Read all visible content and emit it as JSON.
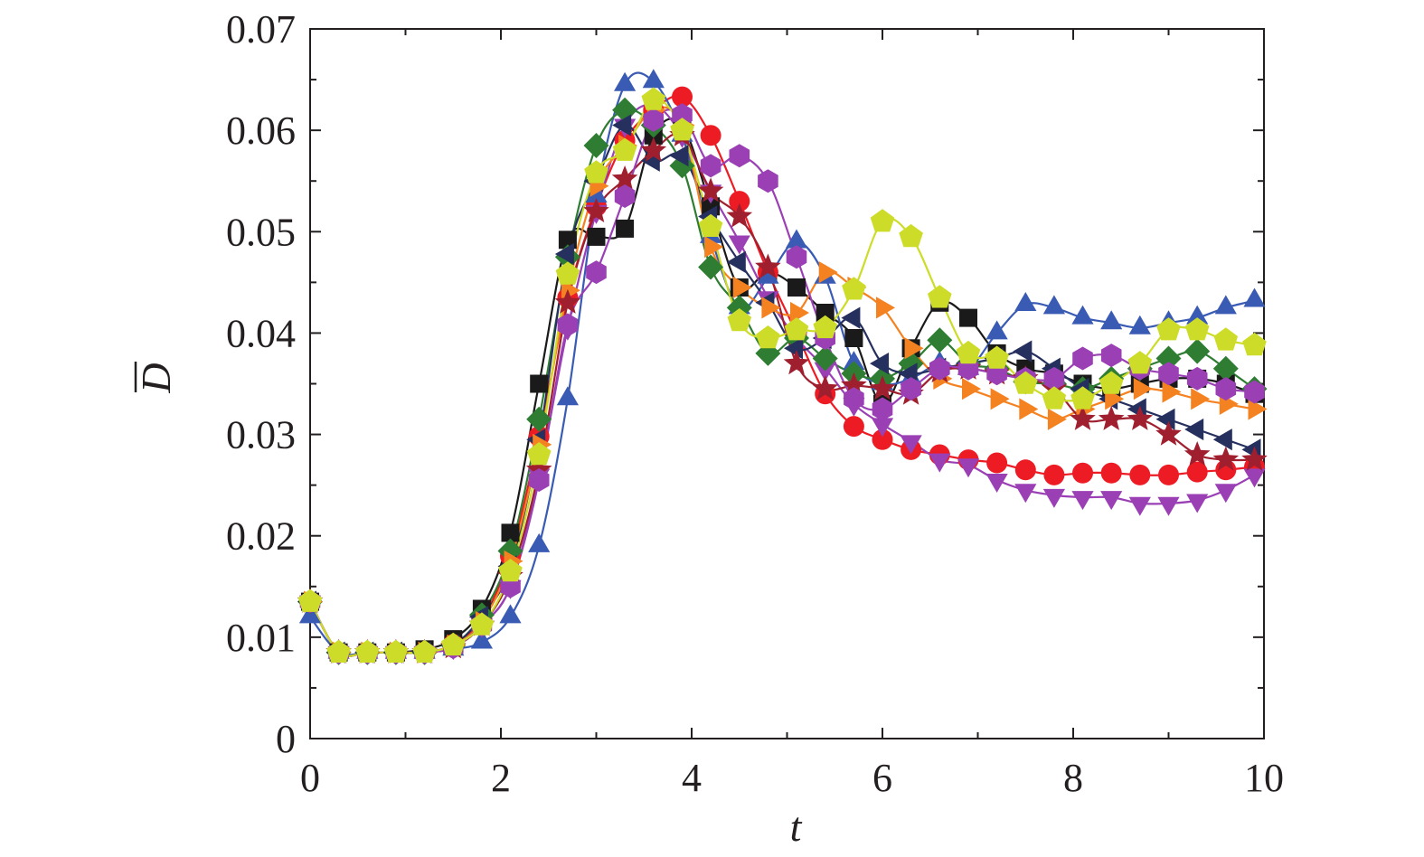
{
  "chart_data": {
    "type": "line",
    "xlabel": "t",
    "ylabel": "D",
    "ylabel_overbar": true,
    "xlim": [
      0,
      10
    ],
    "ylim": [
      0,
      0.07
    ],
    "x_ticks": [
      "0",
      "2",
      "4",
      "6",
      "8",
      "10"
    ],
    "y_ticks": [
      "0",
      "0.01",
      "0.02",
      "0.03",
      "0.04",
      "0.05",
      "0.06",
      "0.07"
    ],
    "grid": false,
    "legend": "none",
    "series": [
      {
        "marker": "square",
        "color": "#1a1a1a",
        "x": [
          0,
          0.3,
          0.6,
          0.9,
          1.2,
          1.5,
          1.8,
          2.1,
          2.4,
          2.7,
          3.0,
          3.3,
          3.6,
          3.9,
          4.2,
          4.5,
          4.8,
          5.1,
          5.4,
          5.7,
          6.0,
          6.3,
          6.6,
          6.9,
          7.2,
          7.5,
          7.8,
          8.1,
          8.4,
          8.7,
          9.0,
          9.3,
          9.6,
          9.9
        ],
        "y": [
          0.0135,
          0.0085,
          0.0085,
          0.0085,
          0.0088,
          0.0098,
          0.0128,
          0.0203,
          0.035,
          0.0492,
          0.0495,
          0.0503,
          0.0595,
          0.0605,
          0.0525,
          0.0445,
          0.046,
          0.0445,
          0.042,
          0.0395,
          0.033,
          0.0385,
          0.043,
          0.0415,
          0.038,
          0.0365,
          0.036,
          0.035,
          0.0345,
          0.035,
          0.0355,
          0.0355,
          0.035,
          0.034
        ]
      },
      {
        "marker": "circle",
        "color": "#ed1c24",
        "x": [
          0,
          0.3,
          0.6,
          0.9,
          1.2,
          1.5,
          1.8,
          2.1,
          2.4,
          2.7,
          3.0,
          3.3,
          3.6,
          3.9,
          4.2,
          4.5,
          4.8,
          5.1,
          5.4,
          5.7,
          6.0,
          6.3,
          6.6,
          6.9,
          7.2,
          7.5,
          7.8,
          8.1,
          8.4,
          8.7,
          9.0,
          9.3,
          9.6,
          9.9
        ],
        "y": [
          0.0135,
          0.0085,
          0.0085,
          0.0085,
          0.0085,
          0.0093,
          0.0118,
          0.018,
          0.0298,
          0.0435,
          0.0525,
          0.059,
          0.062,
          0.0633,
          0.0595,
          0.053,
          0.046,
          0.04,
          0.034,
          0.0308,
          0.0295,
          0.0285,
          0.028,
          0.0275,
          0.0272,
          0.0265,
          0.026,
          0.0262,
          0.0262,
          0.026,
          0.026,
          0.0263,
          0.0265,
          0.0268
        ]
      },
      {
        "marker": "triangle-up",
        "color": "#3a5bb4",
        "x": [
          0,
          0.3,
          0.6,
          0.9,
          1.2,
          1.5,
          1.8,
          2.1,
          2.4,
          2.7,
          3.0,
          3.3,
          3.6,
          3.9,
          4.2,
          4.5,
          4.8,
          5.1,
          5.4,
          5.7,
          6.0,
          6.3,
          6.6,
          6.9,
          7.2,
          7.5,
          7.8,
          8.1,
          8.4,
          8.7,
          9.0,
          9.3,
          9.6,
          9.9
        ],
        "y": [
          0.012,
          0.0085,
          0.0085,
          0.0085,
          0.0085,
          0.0088,
          0.0095,
          0.012,
          0.019,
          0.0335,
          0.0535,
          0.0645,
          0.0648,
          0.0595,
          0.0495,
          0.0425,
          0.0455,
          0.049,
          0.0455,
          0.037,
          0.035,
          0.0355,
          0.037,
          0.0365,
          0.04,
          0.0428,
          0.0425,
          0.0415,
          0.041,
          0.0405,
          0.041,
          0.0415,
          0.0425,
          0.0432
        ]
      },
      {
        "marker": "triangle-down",
        "color": "#9b3fb5",
        "x": [
          0,
          0.3,
          0.6,
          0.9,
          1.2,
          1.5,
          1.8,
          2.1,
          2.4,
          2.7,
          3.0,
          3.3,
          3.6,
          3.9,
          4.2,
          4.5,
          4.8,
          5.1,
          5.4,
          5.7,
          6.0,
          6.3,
          6.6,
          6.9,
          7.2,
          7.5,
          7.8,
          8.1,
          8.4,
          8.7,
          9.0,
          9.3,
          9.6,
          9.9
        ],
        "y": [
          0.0135,
          0.0085,
          0.0085,
          0.0085,
          0.0085,
          0.009,
          0.0112,
          0.015,
          0.026,
          0.0405,
          0.052,
          0.0605,
          0.0625,
          0.0595,
          0.054,
          0.049,
          0.0435,
          0.0395,
          0.0365,
          0.033,
          0.031,
          0.0293,
          0.0275,
          0.027,
          0.0255,
          0.0245,
          0.024,
          0.0238,
          0.0238,
          0.0232,
          0.0232,
          0.0235,
          0.0245,
          0.026
        ]
      },
      {
        "marker": "diamond",
        "color": "#2e7d32",
        "x": [
          0,
          0.3,
          0.6,
          0.9,
          1.2,
          1.5,
          1.8,
          2.1,
          2.4,
          2.7,
          3.0,
          3.3,
          3.6,
          3.9,
          4.2,
          4.5,
          4.8,
          5.1,
          5.4,
          5.7,
          6.0,
          6.3,
          6.6,
          6.9,
          7.2,
          7.5,
          7.8,
          8.1,
          8.4,
          8.7,
          9.0,
          9.3,
          9.6,
          9.9
        ],
        "y": [
          0.0135,
          0.0085,
          0.0085,
          0.0085,
          0.0085,
          0.0092,
          0.0122,
          0.0185,
          0.0315,
          0.0475,
          0.0585,
          0.062,
          0.0605,
          0.0565,
          0.0465,
          0.0425,
          0.038,
          0.0395,
          0.0375,
          0.036,
          0.0355,
          0.037,
          0.0393,
          0.037,
          0.0365,
          0.0352,
          0.035,
          0.0345,
          0.0355,
          0.0365,
          0.0375,
          0.0382,
          0.0365,
          0.0345
        ]
      },
      {
        "marker": "triangle-left",
        "color": "#26305e",
        "x": [
          0,
          0.3,
          0.6,
          0.9,
          1.2,
          1.5,
          1.8,
          2.1,
          2.4,
          2.7,
          3.0,
          3.3,
          3.6,
          3.9,
          4.2,
          4.5,
          4.8,
          5.1,
          5.4,
          5.7,
          6.0,
          6.3,
          6.6,
          6.9,
          7.2,
          7.5,
          7.8,
          8.1,
          8.4,
          8.7,
          9.0,
          9.3,
          9.6,
          9.9
        ],
        "y": [
          0.0135,
          0.0085,
          0.0085,
          0.0085,
          0.0085,
          0.0092,
          0.012,
          0.017,
          0.0295,
          0.0478,
          0.055,
          0.0605,
          0.057,
          0.0575,
          0.0515,
          0.047,
          0.043,
          0.0385,
          0.0395,
          0.0415,
          0.037,
          0.036,
          0.0365,
          0.037,
          0.0375,
          0.0382,
          0.0365,
          0.0345,
          0.0335,
          0.0325,
          0.0315,
          0.0305,
          0.0295,
          0.0285
        ]
      },
      {
        "marker": "triangle-right",
        "color": "#f58220",
        "x": [
          0,
          0.3,
          0.6,
          0.9,
          1.2,
          1.5,
          1.8,
          2.1,
          2.4,
          2.7,
          3.0,
          3.3,
          3.6,
          3.9,
          4.2,
          4.5,
          4.8,
          5.1,
          5.4,
          5.7,
          6.0,
          6.3,
          6.6,
          6.9,
          7.2,
          7.5,
          7.8,
          8.1,
          8.4,
          8.7,
          9.0,
          9.3,
          9.6,
          9.9
        ],
        "y": [
          0.0135,
          0.0085,
          0.0085,
          0.0085,
          0.0085,
          0.0092,
          0.0115,
          0.0175,
          0.029,
          0.0442,
          0.0545,
          0.0585,
          0.062,
          0.0605,
          0.0485,
          0.0445,
          0.0425,
          0.042,
          0.046,
          0.0445,
          0.0425,
          0.0385,
          0.0355,
          0.0345,
          0.0335,
          0.0325,
          0.0315,
          0.0325,
          0.0335,
          0.0345,
          0.0342,
          0.0335,
          0.033,
          0.0325
        ]
      },
      {
        "marker": "star",
        "color": "#a01f2f",
        "x": [
          0,
          0.3,
          0.6,
          0.9,
          1.2,
          1.5,
          1.8,
          2.1,
          2.4,
          2.7,
          3.0,
          3.3,
          3.6,
          3.9,
          4.2,
          4.5,
          4.8,
          5.1,
          5.4,
          5.7,
          6.0,
          6.3,
          6.6,
          6.9,
          7.2,
          7.5,
          7.8,
          8.1,
          8.4,
          8.7,
          9.0,
          9.3,
          9.6,
          9.9
        ],
        "y": [
          0.0135,
          0.0085,
          0.0085,
          0.0085,
          0.0085,
          0.009,
          0.0112,
          0.016,
          0.0265,
          0.043,
          0.052,
          0.0552,
          0.058,
          0.0595,
          0.054,
          0.0515,
          0.0465,
          0.037,
          0.0345,
          0.0348,
          0.0345,
          0.034,
          0.0362,
          0.0365,
          0.036,
          0.0355,
          0.0345,
          0.0315,
          0.0315,
          0.0315,
          0.03,
          0.028,
          0.0275,
          0.0275
        ]
      },
      {
        "marker": "hexagon",
        "color": "#9b3fb5",
        "x": [
          0,
          0.3,
          0.6,
          0.9,
          1.2,
          1.5,
          1.8,
          2.1,
          2.4,
          2.7,
          3.0,
          3.3,
          3.6,
          3.9,
          4.2,
          4.5,
          4.8,
          5.1,
          5.4,
          5.7,
          6.0,
          6.3,
          6.6,
          6.9,
          7.2,
          7.5,
          7.8,
          8.1,
          8.4,
          8.7,
          9.0,
          9.3,
          9.6,
          9.9
        ],
        "y": [
          0.0135,
          0.0085,
          0.0085,
          0.0085,
          0.0085,
          0.009,
          0.0112,
          0.015,
          0.0255,
          0.0408,
          0.046,
          0.0535,
          0.061,
          0.0615,
          0.0565,
          0.0575,
          0.055,
          0.0475,
          0.0395,
          0.0335,
          0.0325,
          0.0345,
          0.0365,
          0.0365,
          0.036,
          0.0355,
          0.0355,
          0.0375,
          0.0378,
          0.0365,
          0.036,
          0.0355,
          0.0345,
          0.0342
        ]
      },
      {
        "marker": "pentagon",
        "color": "#cddc29",
        "x": [
          0,
          0.3,
          0.6,
          0.9,
          1.2,
          1.5,
          1.8,
          2.1,
          2.4,
          2.7,
          3.0,
          3.3,
          3.6,
          3.9,
          4.2,
          4.5,
          4.8,
          5.1,
          5.4,
          5.7,
          6.0,
          6.3,
          6.6,
          6.9,
          7.2,
          7.5,
          7.8,
          8.1,
          8.4,
          8.7,
          9.0,
          9.3,
          9.6,
          9.9
        ],
        "y": [
          0.0135,
          0.0085,
          0.0085,
          0.0085,
          0.0085,
          0.0092,
          0.0112,
          0.0165,
          0.028,
          0.0458,
          0.0558,
          0.058,
          0.063,
          0.06,
          0.0505,
          0.0412,
          0.0395,
          0.0403,
          0.0405,
          0.0443,
          0.051,
          0.0495,
          0.0435,
          0.038,
          0.0375,
          0.035,
          0.0335,
          0.0335,
          0.035,
          0.037,
          0.0403,
          0.0403,
          0.0393,
          0.0388
        ]
      }
    ]
  }
}
